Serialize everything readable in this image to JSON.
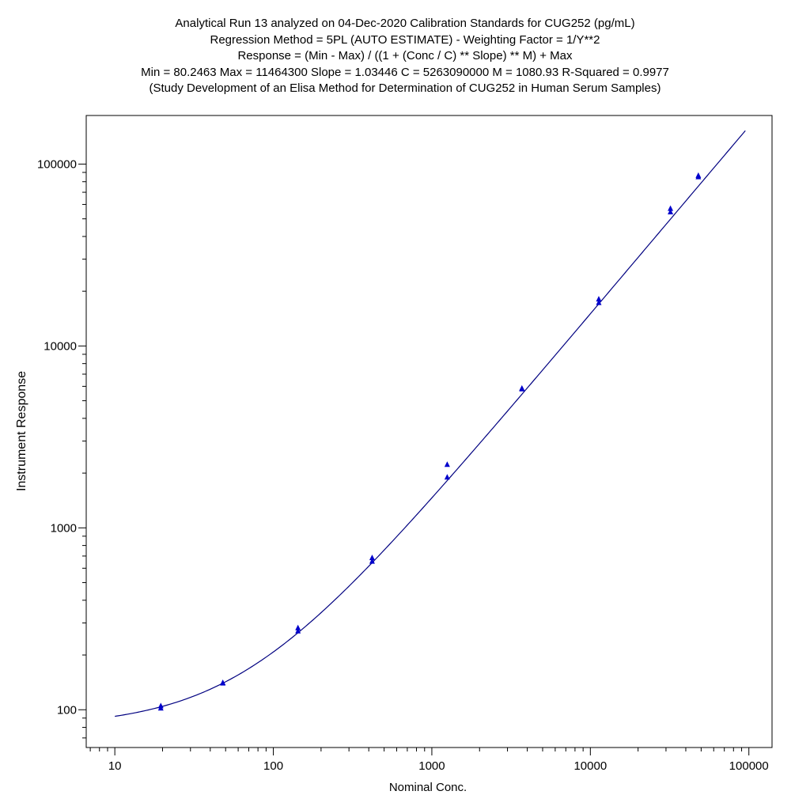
{
  "chart_data": {
    "type": "scatter",
    "title": [
      "Analytical Run 13 analyzed on 04-Dec-2020 Calibration Standards for CUG252 (pg/mL)",
      "Regression Method = 5PL (AUTO ESTIMATE) - Weighting Factor = 1/Y**2",
      "Response = (Min - Max) / ((1 + (Conc / C) ** Slope) ** M) + Max",
      "Min = 80.2463 Max = 11464300 Slope = 1.03446 C = 5263090000 M = 1080.93 R-Squared = 0.9977",
      "(Study Development of an Elisa Method for Determination of CUG252 in Human Serum Samples)"
    ],
    "xlabel": "Nominal Conc.",
    "ylabel": "Instrument Response",
    "x_scale": "log",
    "y_scale": "log",
    "xlim": [
      6.6,
      140000
    ],
    "ylim": [
      62,
      185000
    ],
    "x_ticks": [
      10,
      100,
      1000,
      10000,
      100000
    ],
    "x_tick_labels": [
      "10",
      "100",
      "1000",
      "10000",
      "100000"
    ],
    "y_ticks": [
      100,
      1000,
      10000,
      100000
    ],
    "y_tick_labels": [
      "100",
      "1000",
      "10000",
      "100000"
    ],
    "grid": false,
    "marker_color": "#0000cc",
    "curve_color": "#000080",
    "fit": {
      "model": "5PL",
      "min": 80.2463,
      "max": 11464300,
      "slope": 1.03446,
      "c": 5263090000,
      "m": 1080.93,
      "x_range": [
        10,
        95000
      ]
    },
    "points": [
      {
        "x": 19.5,
        "y": 105
      },
      {
        "x": 19.5,
        "y": 102
      },
      {
        "x": 48,
        "y": 141
      },
      {
        "x": 48,
        "y": 140
      },
      {
        "x": 143,
        "y": 282
      },
      {
        "x": 143,
        "y": 271
      },
      {
        "x": 420,
        "y": 685
      },
      {
        "x": 420,
        "y": 655
      },
      {
        "x": 1250,
        "y": 2230
      },
      {
        "x": 1250,
        "y": 1900
      },
      {
        "x": 3700,
        "y": 5850
      },
      {
        "x": 3700,
        "y": 5800
      },
      {
        "x": 11300,
        "y": 18100
      },
      {
        "x": 11300,
        "y": 17300
      },
      {
        "x": 32000,
        "y": 57000
      },
      {
        "x": 32000,
        "y": 54500
      },
      {
        "x": 48000,
        "y": 86500
      },
      {
        "x": 48000,
        "y": 85000
      }
    ]
  }
}
